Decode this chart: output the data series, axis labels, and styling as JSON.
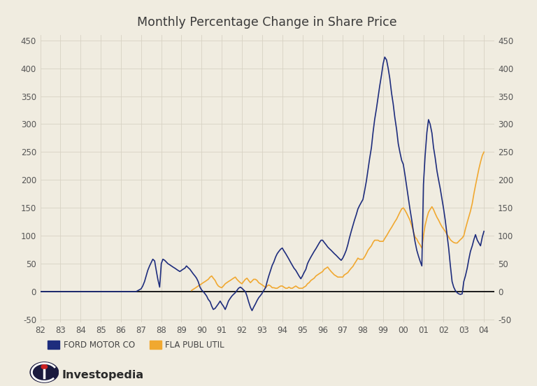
{
  "title": "Monthly Percentage Change in Share Price",
  "background_color": "#f0ece0",
  "grid_color": "#d8d2c4",
  "ford_color": "#1e2d7d",
  "fla_color": "#f0a830",
  "x_tick_labels": [
    "82",
    "83",
    "84",
    "85",
    "86",
    "87",
    "88",
    "89",
    "90",
    "91",
    "92",
    "93",
    "94",
    "95",
    "96",
    "97",
    "98",
    "99",
    "00",
    "01",
    "02",
    "03",
    "04"
  ],
  "y_ticks": [
    -50,
    0,
    50,
    100,
    150,
    200,
    250,
    300,
    350,
    400,
    450
  ],
  "ford_x": [
    1982.0,
    1982.25,
    1982.5,
    1982.75,
    1983.0,
    1983.25,
    1983.5,
    1983.75,
    1984.0,
    1984.25,
    1984.5,
    1984.75,
    1985.0,
    1985.25,
    1985.5,
    1985.75,
    1986.0,
    1986.25,
    1986.5,
    1986.75,
    1987.0,
    1987.08,
    1987.17,
    1987.25,
    1987.33,
    1987.42,
    1987.5,
    1987.58,
    1987.67,
    1987.75,
    1987.83,
    1987.92,
    1988.0,
    1988.08,
    1988.17,
    1988.25,
    1988.33,
    1988.42,
    1988.5,
    1988.58,
    1988.67,
    1988.75,
    1988.83,
    1988.92,
    1989.0,
    1989.08,
    1989.17,
    1989.25,
    1989.33,
    1989.42,
    1989.5,
    1989.58,
    1989.67,
    1989.75,
    1989.83,
    1989.92,
    1990.0,
    1990.08,
    1990.17,
    1990.25,
    1990.33,
    1990.42,
    1990.5,
    1990.58,
    1990.67,
    1990.75,
    1990.83,
    1990.92,
    1991.0,
    1991.08,
    1991.17,
    1991.25,
    1991.33,
    1991.42,
    1991.5,
    1991.58,
    1991.67,
    1991.75,
    1991.83,
    1991.92,
    1992.0,
    1992.08,
    1992.17,
    1992.25,
    1992.33,
    1992.42,
    1992.5,
    1992.58,
    1992.67,
    1992.75,
    1992.83,
    1992.92,
    1993.0,
    1993.08,
    1993.17,
    1993.25,
    1993.33,
    1993.42,
    1993.5,
    1993.58,
    1993.67,
    1993.75,
    1993.83,
    1993.92,
    1994.0,
    1994.08,
    1994.17,
    1994.25,
    1994.33,
    1994.42,
    1994.5,
    1994.58,
    1994.67,
    1994.75,
    1994.83,
    1994.92,
    1995.0,
    1995.08,
    1995.17,
    1995.25,
    1995.33,
    1995.42,
    1995.5,
    1995.58,
    1995.67,
    1995.75,
    1995.83,
    1995.92,
    1996.0,
    1996.08,
    1996.17,
    1996.25,
    1996.33,
    1996.42,
    1996.5,
    1996.58,
    1996.67,
    1996.75,
    1996.83,
    1996.92,
    1997.0,
    1997.08,
    1997.17,
    1997.25,
    1997.33,
    1997.42,
    1997.5,
    1997.58,
    1997.67,
    1997.75,
    1997.83,
    1997.92,
    1998.0,
    1998.08,
    1998.17,
    1998.25,
    1998.33,
    1998.42,
    1998.5,
    1998.58,
    1998.67,
    1998.75,
    1998.83,
    1998.92,
    1999.0,
    1999.08,
    1999.17,
    1999.25,
    1999.33,
    1999.42,
    1999.5,
    1999.58,
    1999.67,
    1999.75,
    1999.83,
    1999.92,
    2000.0,
    2000.08,
    2000.17,
    2000.25,
    2000.33,
    2000.42,
    2000.5,
    2000.58,
    2000.67,
    2000.75,
    2000.83,
    2000.92,
    2001.0,
    2001.08,
    2001.17,
    2001.25,
    2001.33,
    2001.42,
    2001.5,
    2001.58,
    2001.67,
    2001.75,
    2001.83,
    2001.92,
    2002.0,
    2002.08,
    2002.17,
    2002.25,
    2002.33,
    2002.42,
    2002.5,
    2002.58,
    2002.67,
    2002.75,
    2002.83,
    2002.92,
    2003.0,
    2003.08,
    2003.17,
    2003.25,
    2003.33,
    2003.42,
    2003.5,
    2003.58,
    2003.67,
    2003.75,
    2003.83,
    2003.92,
    2004.0
  ],
  "ford_y": [
    0,
    0,
    0,
    0,
    0,
    0,
    0,
    0,
    0,
    0,
    0,
    0,
    0,
    0,
    0,
    0,
    0,
    0,
    0,
    0,
    5,
    10,
    18,
    28,
    38,
    46,
    52,
    58,
    55,
    38,
    22,
    8,
    50,
    58,
    56,
    53,
    50,
    48,
    46,
    44,
    42,
    40,
    38,
    36,
    38,
    40,
    42,
    46,
    43,
    40,
    36,
    32,
    28,
    24,
    18,
    8,
    3,
    0,
    -4,
    -8,
    -14,
    -18,
    -26,
    -32,
    -30,
    -26,
    -22,
    -17,
    -22,
    -26,
    -32,
    -25,
    -17,
    -12,
    -8,
    -5,
    -2,
    2,
    6,
    8,
    6,
    3,
    0,
    -8,
    -18,
    -28,
    -34,
    -28,
    -22,
    -16,
    -11,
    -7,
    -3,
    2,
    7,
    18,
    28,
    38,
    47,
    53,
    62,
    68,
    72,
    76,
    78,
    73,
    68,
    63,
    58,
    52,
    47,
    42,
    38,
    33,
    28,
    23,
    28,
    34,
    40,
    50,
    56,
    62,
    67,
    72,
    77,
    82,
    87,
    92,
    92,
    88,
    84,
    80,
    77,
    74,
    71,
    68,
    65,
    62,
    59,
    56,
    60,
    66,
    74,
    84,
    96,
    108,
    118,
    128,
    138,
    148,
    154,
    160,
    165,
    180,
    198,
    218,
    238,
    258,
    285,
    308,
    328,
    348,
    368,
    388,
    408,
    420,
    415,
    400,
    382,
    355,
    336,
    312,
    290,
    265,
    250,
    235,
    228,
    210,
    188,
    168,
    148,
    128,
    108,
    90,
    74,
    64,
    55,
    46,
    192,
    242,
    285,
    308,
    300,
    284,
    258,
    240,
    216,
    200,
    185,
    165,
    148,
    128,
    102,
    78,
    48,
    18,
    8,
    2,
    -2,
    -4,
    -5,
    -4,
    18,
    28,
    42,
    58,
    72,
    82,
    93,
    102,
    92,
    87,
    82,
    98,
    108
  ],
  "fla_x": [
    1989.5,
    1989.58,
    1989.67,
    1989.75,
    1989.83,
    1989.92,
    1990.0,
    1990.08,
    1990.17,
    1990.25,
    1990.33,
    1990.42,
    1990.5,
    1990.58,
    1990.67,
    1990.75,
    1990.83,
    1990.92,
    1991.0,
    1991.08,
    1991.17,
    1991.25,
    1991.33,
    1991.42,
    1991.5,
    1991.58,
    1991.67,
    1991.75,
    1991.83,
    1991.92,
    1992.0,
    1992.08,
    1992.17,
    1992.25,
    1992.33,
    1992.42,
    1992.5,
    1992.58,
    1992.67,
    1992.75,
    1992.83,
    1992.92,
    1993.0,
    1993.08,
    1993.17,
    1993.25,
    1993.33,
    1993.42,
    1993.5,
    1993.58,
    1993.67,
    1993.75,
    1993.83,
    1993.92,
    1994.0,
    1994.08,
    1994.17,
    1994.25,
    1994.33,
    1994.42,
    1994.5,
    1994.58,
    1994.67,
    1994.75,
    1994.83,
    1994.92,
    1995.0,
    1995.08,
    1995.17,
    1995.25,
    1995.33,
    1995.42,
    1995.5,
    1995.58,
    1995.67,
    1995.75,
    1995.83,
    1995.92,
    1996.0,
    1996.08,
    1996.17,
    1996.25,
    1996.33,
    1996.42,
    1996.5,
    1996.58,
    1996.67,
    1996.75,
    1996.83,
    1996.92,
    1997.0,
    1997.08,
    1997.17,
    1997.25,
    1997.33,
    1997.42,
    1997.5,
    1997.58,
    1997.67,
    1997.75,
    1997.83,
    1997.92,
    1998.0,
    1998.08,
    1998.17,
    1998.25,
    1998.33,
    1998.42,
    1998.5,
    1998.58,
    1998.67,
    1998.75,
    1998.83,
    1998.92,
    1999.0,
    1999.08,
    1999.17,
    1999.25,
    1999.33,
    1999.42,
    1999.5,
    1999.58,
    1999.67,
    1999.75,
    1999.83,
    1999.92,
    2000.0,
    2000.08,
    2000.17,
    2000.25,
    2000.33,
    2000.42,
    2000.5,
    2000.58,
    2000.67,
    2000.75,
    2000.83,
    2000.92,
    2001.0,
    2001.08,
    2001.17,
    2001.25,
    2001.33,
    2001.42,
    2001.5,
    2001.58,
    2001.67,
    2001.75,
    2001.83,
    2001.92,
    2002.0,
    2002.08,
    2002.17,
    2002.25,
    2002.33,
    2002.42,
    2002.5,
    2002.58,
    2002.67,
    2002.75,
    2002.83,
    2002.92,
    2003.0,
    2003.08,
    2003.17,
    2003.25,
    2003.33,
    2003.42,
    2003.5,
    2003.58,
    2003.67,
    2003.75,
    2003.83,
    2003.92,
    2004.0
  ],
  "fla_y": [
    2,
    4,
    6,
    8,
    10,
    12,
    14,
    16,
    18,
    20,
    22,
    26,
    28,
    24,
    20,
    14,
    10,
    8,
    7,
    10,
    14,
    16,
    18,
    20,
    22,
    24,
    26,
    22,
    19,
    16,
    14,
    18,
    22,
    24,
    20,
    16,
    19,
    22,
    22,
    20,
    16,
    14,
    12,
    10,
    7,
    10,
    12,
    10,
    7,
    7,
    6,
    6,
    8,
    10,
    10,
    8,
    6,
    6,
    8,
    6,
    6,
    8,
    10,
    8,
    6,
    6,
    6,
    8,
    10,
    14,
    16,
    20,
    22,
    24,
    28,
    30,
    32,
    34,
    36,
    40,
    42,
    44,
    40,
    36,
    33,
    30,
    28,
    26,
    26,
    26,
    26,
    30,
    32,
    34,
    38,
    42,
    45,
    50,
    55,
    60,
    58,
    58,
    58,
    62,
    68,
    74,
    78,
    82,
    88,
    92,
    92,
    92,
    90,
    90,
    90,
    95,
    100,
    105,
    110,
    115,
    120,
    125,
    130,
    136,
    142,
    148,
    150,
    146,
    140,
    134,
    128,
    118,
    108,
    98,
    94,
    88,
    84,
    78,
    100,
    118,
    132,
    142,
    147,
    152,
    147,
    140,
    133,
    128,
    122,
    116,
    112,
    108,
    102,
    98,
    93,
    90,
    88,
    87,
    87,
    90,
    93,
    96,
    100,
    112,
    124,
    134,
    144,
    158,
    175,
    190,
    206,
    220,
    232,
    244,
    250
  ]
}
